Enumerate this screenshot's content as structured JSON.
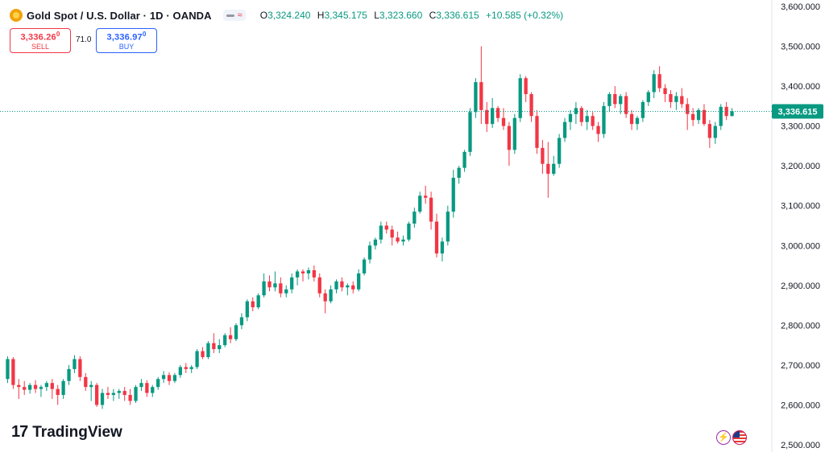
{
  "header": {
    "symbol_title": "Gold Spot / U.S. Dollar · 1D · OANDA",
    "toggle_icon": "wave-icon",
    "ohlc": {
      "o_label": "O",
      "o_value": "3,324.240",
      "h_label": "H",
      "h_value": "3,345.175",
      "l_label": "L",
      "l_value": "3,323.660",
      "c_label": "C",
      "c_value": "3,336.615",
      "change": "+10.585 (+0.32%)"
    }
  },
  "trade": {
    "sell_price": "3,336.26",
    "sell_price_sup": "0",
    "sell_label": "SELL",
    "spread": "71.0",
    "buy_price": "3,336.97",
    "buy_price_sup": "0",
    "buy_label": "BUY"
  },
  "branding": {
    "logo_mark": "17",
    "logo_text": "TradingView"
  },
  "colors": {
    "up": "#089981",
    "down": "#f23645",
    "sell": "#f23645",
    "buy": "#2962ff",
    "last_price": "#089981"
  },
  "chart_data": {
    "type": "candlestick",
    "ylim": [
      2500,
      3600
    ],
    "y_ticks": [
      "3,600.000",
      "3,500.000",
      "3,400.000",
      "3,300.000",
      "3,200.000",
      "3,100.000",
      "3,000.000",
      "2,900.000",
      "2,800.000",
      "2,700.000",
      "2,600.000",
      "2,500.000"
    ],
    "y_tick_values": [
      3600,
      3500,
      3400,
      3300,
      3200,
      3100,
      3000,
      2900,
      2800,
      2700,
      2600,
      2500
    ],
    "last_price": 3336.615,
    "last_price_label": "3,336.615",
    "grid": false,
    "candles": [
      [
        2665,
        2722,
        2655,
        2715
      ],
      [
        2715,
        2720,
        2640,
        2650
      ],
      [
        2650,
        2665,
        2615,
        2645
      ],
      [
        2645,
        2660,
        2625,
        2638
      ],
      [
        2638,
        2655,
        2628,
        2650
      ],
      [
        2650,
        2662,
        2630,
        2640
      ],
      [
        2640,
        2650,
        2620,
        2645
      ],
      [
        2645,
        2660,
        2635,
        2655
      ],
      [
        2655,
        2665,
        2615,
        2640
      ],
      [
        2640,
        2650,
        2600,
        2625
      ],
      [
        2625,
        2665,
        2615,
        2660
      ],
      [
        2660,
        2700,
        2650,
        2690
      ],
      [
        2690,
        2725,
        2680,
        2715
      ],
      [
        2715,
        2722,
        2660,
        2670
      ],
      [
        2670,
        2680,
        2635,
        2645
      ],
      [
        2645,
        2660,
        2610,
        2650
      ],
      [
        2650,
        2655,
        2595,
        2600
      ],
      [
        2600,
        2640,
        2590,
        2630
      ],
      [
        2630,
        2645,
        2615,
        2625
      ],
      [
        2625,
        2640,
        2610,
        2630
      ],
      [
        2630,
        2640,
        2615,
        2635
      ],
      [
        2635,
        2645,
        2610,
        2625
      ],
      [
        2625,
        2640,
        2600,
        2610
      ],
      [
        2610,
        2650,
        2605,
        2645
      ],
      [
        2645,
        2665,
        2635,
        2655
      ],
      [
        2655,
        2662,
        2620,
        2630
      ],
      [
        2630,
        2650,
        2620,
        2645
      ],
      [
        2645,
        2670,
        2638,
        2665
      ],
      [
        2665,
        2685,
        2655,
        2675
      ],
      [
        2675,
        2682,
        2650,
        2660
      ],
      [
        2660,
        2680,
        2655,
        2675
      ],
      [
        2675,
        2700,
        2668,
        2695
      ],
      [
        2695,
        2705,
        2680,
        2690
      ],
      [
        2690,
        2700,
        2680,
        2695
      ],
      [
        2695,
        2740,
        2690,
        2735
      ],
      [
        2735,
        2745,
        2715,
        2720
      ],
      [
        2720,
        2760,
        2715,
        2755
      ],
      [
        2755,
        2780,
        2730,
        2740
      ],
      [
        2740,
        2765,
        2730,
        2750
      ],
      [
        2750,
        2780,
        2745,
        2775
      ],
      [
        2775,
        2795,
        2755,
        2765
      ],
      [
        2765,
        2805,
        2760,
        2800
      ],
      [
        2800,
        2830,
        2790,
        2820
      ],
      [
        2820,
        2865,
        2810,
        2860
      ],
      [
        2860,
        2870,
        2835,
        2845
      ],
      [
        2845,
        2880,
        2840,
        2875
      ],
      [
        2875,
        2930,
        2870,
        2910
      ],
      [
        2910,
        2925,
        2885,
        2895
      ],
      [
        2895,
        2935,
        2885,
        2905
      ],
      [
        2905,
        2920,
        2870,
        2880
      ],
      [
        2880,
        2900,
        2870,
        2890
      ],
      [
        2890,
        2930,
        2880,
        2920
      ],
      [
        2920,
        2940,
        2900,
        2935
      ],
      [
        2935,
        2940,
        2910,
        2930
      ],
      [
        2930,
        2945,
        2915,
        2938
      ],
      [
        2938,
        2950,
        2910,
        2920
      ],
      [
        2920,
        2930,
        2870,
        2880
      ],
      [
        2880,
        2890,
        2830,
        2860
      ],
      [
        2860,
        2900,
        2855,
        2890
      ],
      [
        2890,
        2915,
        2880,
        2910
      ],
      [
        2910,
        2920,
        2885,
        2895
      ],
      [
        2895,
        2905,
        2875,
        2900
      ],
      [
        2900,
        2910,
        2880,
        2890
      ],
      [
        2890,
        2940,
        2885,
        2930
      ],
      [
        2930,
        2970,
        2925,
        2965
      ],
      [
        2965,
        3010,
        2955,
        3000
      ],
      [
        3000,
        3020,
        2990,
        3015
      ],
      [
        3015,
        3060,
        3005,
        3050
      ],
      [
        3050,
        3060,
        3030,
        3040
      ],
      [
        3040,
        3050,
        3000,
        3020
      ],
      [
        3020,
        3035,
        3005,
        3010
      ],
      [
        3010,
        3025,
        3000,
        3015
      ],
      [
        3015,
        3060,
        3010,
        3055
      ],
      [
        3055,
        3095,
        3045,
        3085
      ],
      [
        3085,
        3135,
        3080,
        3125
      ],
      [
        3125,
        3150,
        3105,
        3120
      ],
      [
        3120,
        3135,
        3040,
        3060
      ],
      [
        3060,
        3080,
        2970,
        2980
      ],
      [
        2980,
        3020,
        2960,
        3010
      ],
      [
        3010,
        3100,
        3000,
        3085
      ],
      [
        3085,
        3190,
        3070,
        3170
      ],
      [
        3170,
        3200,
        3155,
        3195
      ],
      [
        3195,
        3240,
        3185,
        3235
      ],
      [
        3235,
        3345,
        3225,
        3335
      ],
      [
        3335,
        3420,
        3320,
        3410
      ],
      [
        3410,
        3500,
        3305,
        3340
      ],
      [
        3340,
        3360,
        3285,
        3305
      ],
      [
        3305,
        3370,
        3295,
        3345
      ],
      [
        3345,
        3350,
        3310,
        3320
      ],
      [
        3320,
        3345,
        3290,
        3300
      ],
      [
        3300,
        3310,
        3200,
        3240
      ],
      [
        3240,
        3330,
        3230,
        3320
      ],
      [
        3320,
        3430,
        3310,
        3420
      ],
      [
        3420,
        3425,
        3360,
        3380
      ],
      [
        3380,
        3385,
        3310,
        3325
      ],
      [
        3325,
        3340,
        3230,
        3245
      ],
      [
        3245,
        3265,
        3180,
        3205
      ],
      [
        3205,
        3260,
        3120,
        3180
      ],
      [
        3180,
        3225,
        3175,
        3205
      ],
      [
        3205,
        3280,
        3195,
        3270
      ],
      [
        3270,
        3320,
        3260,
        3310
      ],
      [
        3310,
        3340,
        3290,
        3330
      ],
      [
        3330,
        3360,
        3305,
        3345
      ],
      [
        3345,
        3350,
        3300,
        3310
      ],
      [
        3310,
        3340,
        3290,
        3325
      ],
      [
        3325,
        3335,
        3290,
        3300
      ],
      [
        3300,
        3310,
        3260,
        3280
      ],
      [
        3280,
        3360,
        3270,
        3350
      ],
      [
        3350,
        3385,
        3335,
        3380
      ],
      [
        3380,
        3400,
        3345,
        3355
      ],
      [
        3355,
        3380,
        3330,
        3375
      ],
      [
        3375,
        3385,
        3320,
        3330
      ],
      [
        3330,
        3340,
        3290,
        3305
      ],
      [
        3305,
        3325,
        3290,
        3320
      ],
      [
        3320,
        3365,
        3310,
        3360
      ],
      [
        3360,
        3390,
        3350,
        3385
      ],
      [
        3385,
        3440,
        3370,
        3430
      ],
      [
        3430,
        3450,
        3385,
        3395
      ],
      [
        3395,
        3405,
        3360,
        3380
      ],
      [
        3380,
        3390,
        3345,
        3360
      ],
      [
        3360,
        3385,
        3340,
        3375
      ],
      [
        3375,
        3395,
        3345,
        3355
      ],
      [
        3355,
        3370,
        3290,
        3330
      ],
      [
        3330,
        3345,
        3300,
        3315
      ],
      [
        3315,
        3345,
        3305,
        3340
      ],
      [
        3340,
        3355,
        3300,
        3305
      ],
      [
        3305,
        3315,
        3245,
        3270
      ],
      [
        3270,
        3310,
        3255,
        3300
      ],
      [
        3300,
        3355,
        3290,
        3348
      ],
      [
        3348,
        3360,
        3315,
        3325
      ],
      [
        3325,
        3345,
        3324,
        3336.615
      ]
    ]
  }
}
